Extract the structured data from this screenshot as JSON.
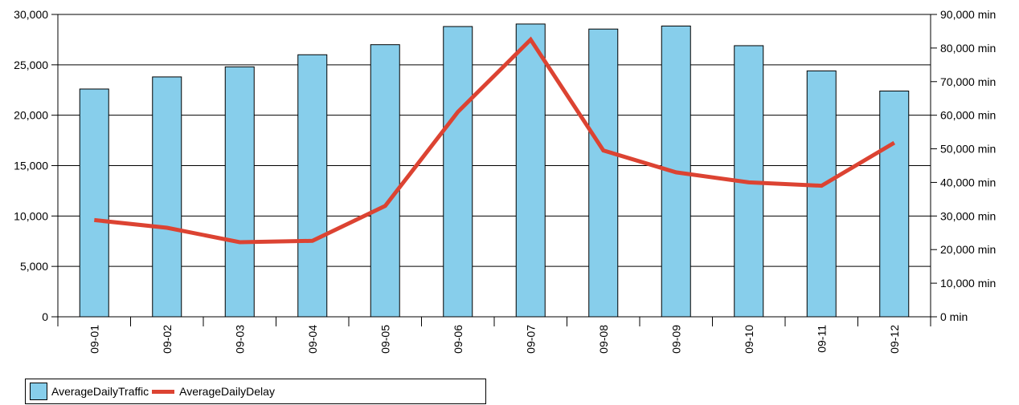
{
  "chart_data": {
    "type": "bar",
    "categories": [
      "09-01",
      "09-02",
      "09-03",
      "09-04",
      "09-05",
      "09-06",
      "09-07",
      "09-08",
      "09-09",
      "09-10",
      "09-11",
      "09-12"
    ],
    "series": [
      {
        "name": "AverageDailyTraffic",
        "type": "bar",
        "axis": "left",
        "color": "#87CEEB",
        "values": [
          22600,
          23800,
          24800,
          26000,
          27000,
          28800,
          29050,
          28550,
          28850,
          26900,
          24400,
          22400
        ]
      },
      {
        "name": "AverageDailyDelay",
        "type": "line",
        "axis": "right",
        "color": "#DC4332",
        "values": [
          28800,
          26500,
          22200,
          22600,
          33000,
          61000,
          82500,
          49500,
          43000,
          40000,
          39000,
          51800
        ]
      }
    ],
    "y_left": {
      "ylim": [
        0,
        30000
      ],
      "ticks": [
        0,
        5000,
        10000,
        15000,
        20000,
        25000,
        30000
      ],
      "tick_labels": [
        "0",
        "5,000",
        "10,000",
        "15,000",
        "20,000",
        "25,000",
        "30,000"
      ]
    },
    "y_right": {
      "ylim": [
        0,
        90000
      ],
      "ticks": [
        0,
        10000,
        20000,
        30000,
        40000,
        50000,
        60000,
        70000,
        80000,
        90000
      ],
      "tick_labels": [
        "0 min",
        "10,000 min",
        "20,000 min",
        "30,000 min",
        "40,000 min",
        "50,000 min",
        "60,000 min",
        "70,000 min",
        "80,000 min",
        "90,000 min"
      ]
    },
    "grid": true,
    "legend_position": "bottom-left",
    "title": "",
    "xlabel": "",
    "ylabel": ""
  }
}
